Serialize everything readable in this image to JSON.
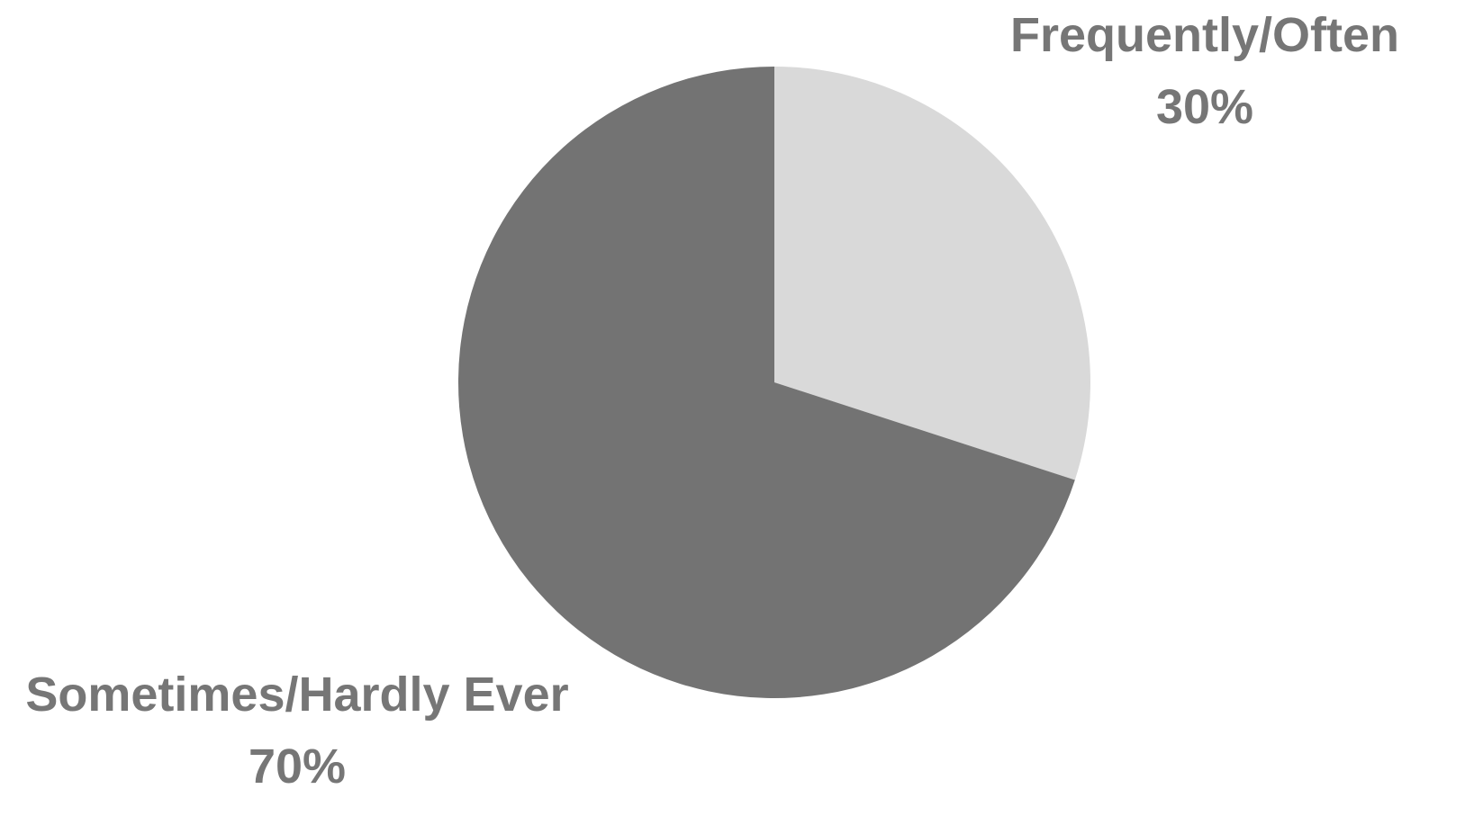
{
  "chart_data": {
    "type": "pie",
    "title": "",
    "start_angle_deg": 0,
    "direction": "clockwise",
    "label_color": "#767676",
    "slices": [
      {
        "label": "Frequently/Often",
        "percent_label": "30%",
        "value": 30,
        "color": "#d9d9d9"
      },
      {
        "label": "Sometimes/Hardly Ever",
        "percent_label": "70%",
        "value": 70,
        "color": "#737373"
      }
    ]
  }
}
